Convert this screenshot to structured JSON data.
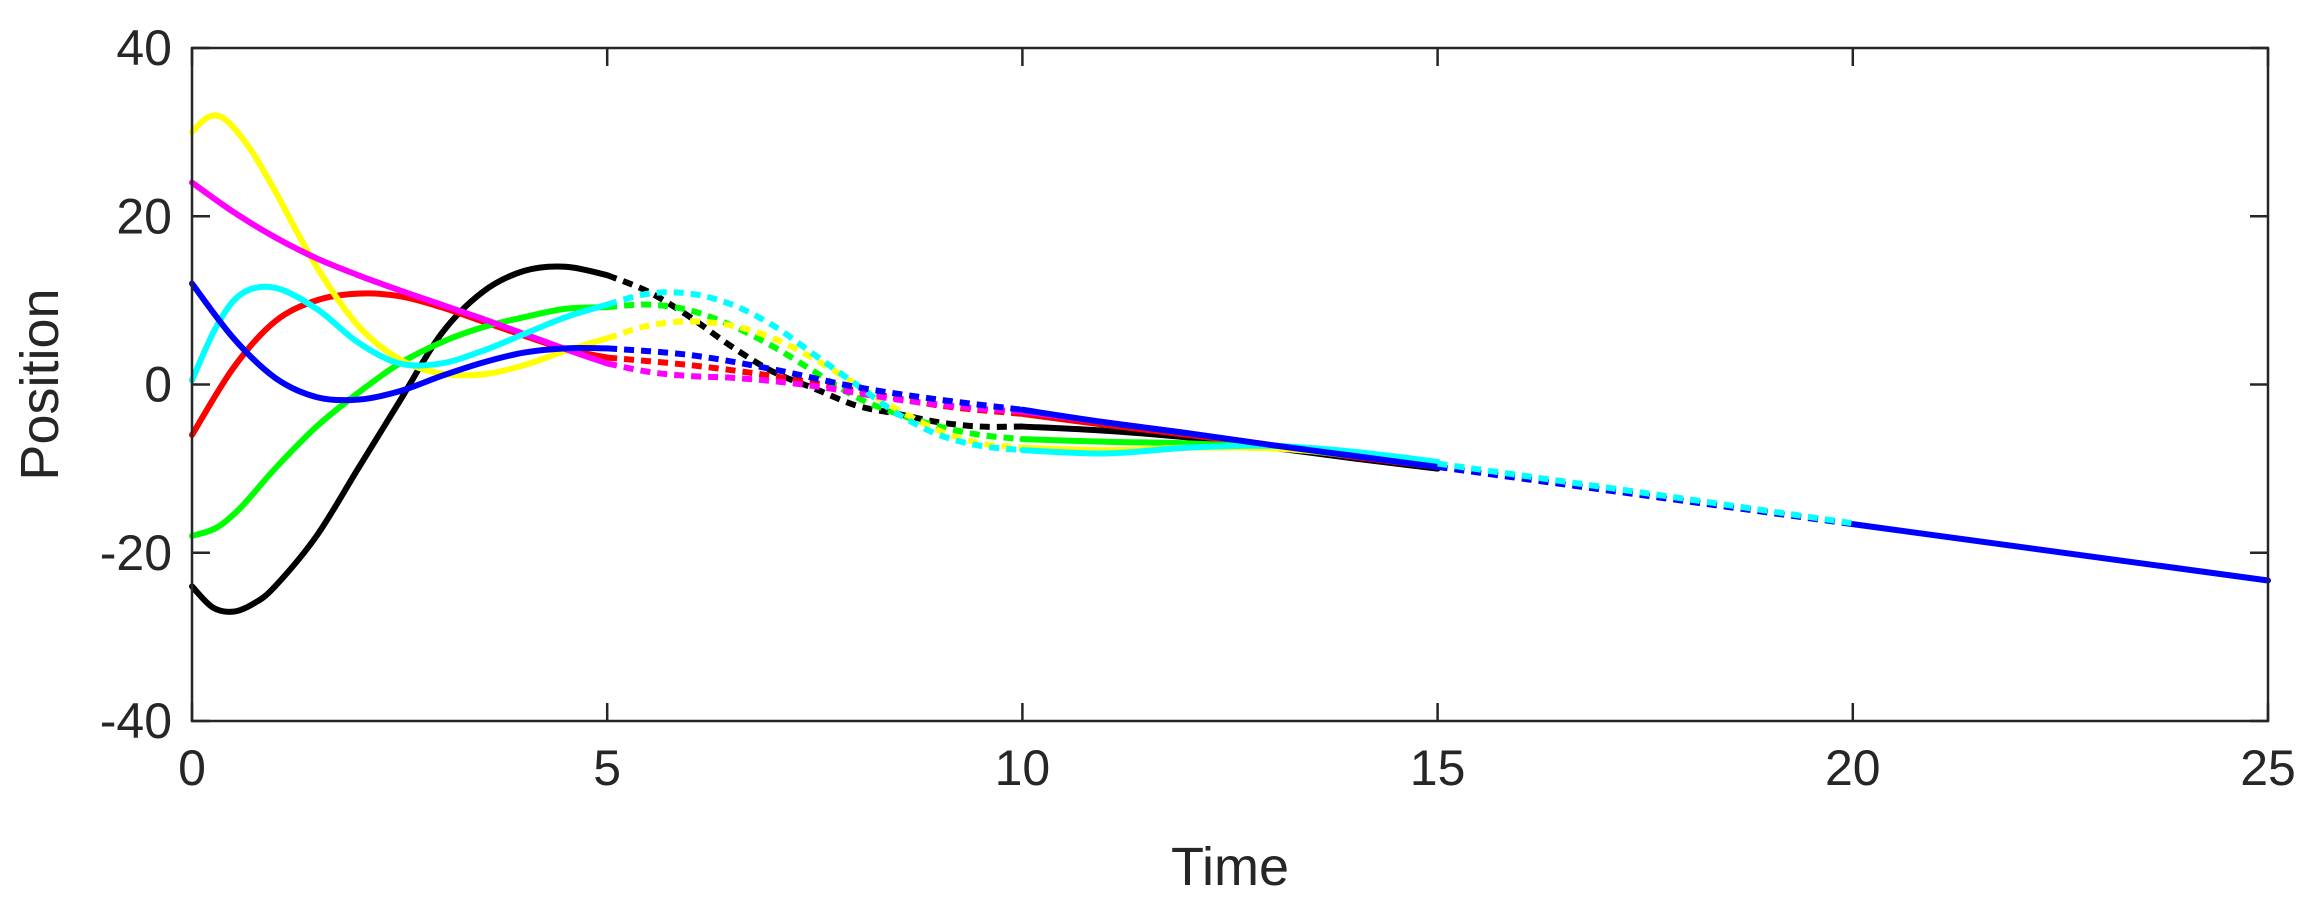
{
  "chart_data": {
    "type": "line",
    "title": "",
    "xlabel": "Time",
    "ylabel": "Position",
    "xlim": [
      0,
      25
    ],
    "ylim": [
      -40,
      40
    ],
    "xticks": [
      0,
      5,
      10,
      15,
      20,
      25
    ],
    "xtick_labels": [
      "0",
      "5",
      "10",
      "15",
      "20",
      "25"
    ],
    "yticks": [
      -40,
      -20,
      0,
      20,
      40
    ],
    "ytick_labels": [
      "-40",
      "-20",
      "0",
      "20",
      "40"
    ],
    "grid": false,
    "legend": "none",
    "series": [
      {
        "color": "#000000",
        "segments": [
          {
            "style": "solid",
            "x": [
              0,
              0.25,
              0.5,
              0.75,
              1,
              1.5,
              2,
              2.5,
              3,
              3.5,
              4,
              4.5,
              5
            ],
            "y": [
              -24,
              -26.5,
              -27,
              -26,
              -24,
              -18,
              -10,
              -2,
              6,
              11,
              13.5,
              14,
              13
            ]
          },
          {
            "style": "dashed",
            "x": [
              5,
              5.5,
              6,
              6.5,
              7,
              7.5,
              8,
              8.5,
              9,
              9.5,
              10
            ],
            "y": [
              13,
              11,
              8,
              4.5,
              1.5,
              -0.5,
              -2.5,
              -3.5,
              -4.5,
              -5,
              -5
            ]
          },
          {
            "style": "solid",
            "x": [
              10,
              11,
              12,
              13,
              14,
              15
            ],
            "y": [
              -5,
              -5.5,
              -6.3,
              -7.5,
              -8.8,
              -10
            ]
          }
        ]
      },
      {
        "color": "#ff0000",
        "segments": [
          {
            "style": "solid",
            "x": [
              0,
              0.5,
              1,
              1.5,
              2,
              2.5,
              3,
              3.5,
              4,
              4.5,
              5
            ],
            "y": [
              -6,
              2,
              7.5,
              10,
              10.8,
              10.5,
              9.2,
              7.5,
              5.8,
              4.2,
              3.2
            ]
          },
          {
            "style": "dashed",
            "x": [
              5,
              6,
              7,
              8,
              9,
              10
            ],
            "y": [
              3.2,
              2.3,
              1,
              -0.7,
              -2.5,
              -3.5
            ]
          },
          {
            "style": "solid",
            "x": [
              10,
              11,
              12,
              13,
              14,
              15
            ],
            "y": [
              -3.5,
              -4.8,
              -6,
              -7.3,
              -8.6,
              -9.8
            ]
          }
        ]
      },
      {
        "color": "#00ff00",
        "segments": [
          {
            "style": "solid",
            "x": [
              0,
              0.3,
              0.6,
              1,
              1.5,
              2,
              2.5,
              3,
              3.5,
              4,
              4.5,
              5
            ],
            "y": [
              -18,
              -17,
              -14.5,
              -10,
              -5,
              -1,
              2.5,
              5,
              6.8,
              8,
              9,
              9.2
            ]
          },
          {
            "style": "dashed",
            "x": [
              5,
              5.5,
              6,
              6.5,
              7,
              7.5,
              8,
              8.5,
              9,
              9.5,
              10
            ],
            "y": [
              9.2,
              9.5,
              8.8,
              7,
              4.5,
              1.5,
              -1.5,
              -3.5,
              -5,
              -6,
              -6.5
            ]
          },
          {
            "style": "solid",
            "x": [
              10,
              11,
              12,
              13,
              14,
              15
            ],
            "y": [
              -6.5,
              -6.8,
              -7,
              -7.5,
              -8.5,
              -9.7
            ]
          }
        ]
      },
      {
        "color": "#ffff00",
        "segments": [
          {
            "style": "solid",
            "x": [
              0,
              0.2,
              0.4,
              0.7,
              1,
              1.5,
              2,
              2.5,
              3,
              3.5,
              4,
              4.5,
              5
            ],
            "y": [
              30,
              31.8,
              31.5,
              28,
              23,
              14,
              7,
              3,
              1.3,
              1.2,
              2.3,
              4,
              5.5
            ]
          },
          {
            "style": "dashed",
            "x": [
              5,
              5.5,
              6,
              6.5,
              7,
              7.5,
              8,
              8.5,
              9,
              9.5,
              10
            ],
            "y": [
              5.5,
              7,
              7.5,
              7,
              5.5,
              3,
              0,
              -3,
              -5.5,
              -7,
              -7.5
            ]
          },
          {
            "style": "solid",
            "x": [
              10,
              11,
              12,
              13,
              14,
              15
            ],
            "y": [
              -7.5,
              -7.8,
              -7.5,
              -7.6,
              -8.4,
              -9.6
            ]
          }
        ]
      },
      {
        "color": "#ff00ff",
        "segments": [
          {
            "style": "solid",
            "x": [
              0,
              0.5,
              1,
              1.5,
              2,
              2.5,
              3,
              3.5,
              4,
              4.5,
              5
            ],
            "y": [
              24,
              20.5,
              17.5,
              15,
              13,
              11.2,
              9.5,
              7.8,
              6,
              4.2,
              2.5
            ]
          },
          {
            "style": "dashed",
            "x": [
              5,
              5.5,
              6,
              6.5,
              7,
              7.5,
              8,
              8.5,
              9,
              9.5,
              10
            ],
            "y": [
              2.5,
              1.5,
              1,
              0.8,
              0.4,
              -0.2,
              -1,
              -1.8,
              -2.4,
              -2.9,
              -3.2
            ]
          },
          {
            "style": "solid",
            "x": [
              10,
              11,
              12,
              13,
              14,
              15
            ],
            "y": [
              -3.2,
              -4.5,
              -5.8,
              -7.2,
              -8.5,
              -9.8
            ]
          }
        ]
      },
      {
        "color": "#00ffff",
        "segments": [
          {
            "style": "solid",
            "x": [
              0,
              0.3,
              0.6,
              1,
              1.5,
              2,
              2.5,
              3,
              3.5,
              4,
              4.5,
              5
            ],
            "y": [
              0.5,
              7,
              10.8,
              11.5,
              9,
              5,
              2.5,
              2.5,
              4,
              6,
              8,
              9.5
            ]
          },
          {
            "style": "dashed",
            "x": [
              5,
              5.5,
              6,
              6.5,
              7,
              7.5,
              8,
              8.5,
              9,
              9.5,
              10
            ],
            "y": [
              9.5,
              10.8,
              10.8,
              9.5,
              7,
              3.5,
              0,
              -3.5,
              -6,
              -7.3,
              -7.8
            ]
          },
          {
            "style": "solid",
            "x": [
              10,
              11,
              12,
              13,
              14,
              15
            ],
            "y": [
              -7.8,
              -8.2,
              -7.5,
              -7.3,
              -8,
              -9.2
            ]
          }
        ]
      },
      {
        "color": "#0000ff",
        "segments": [
          {
            "style": "solid",
            "x": [
              0,
              0.5,
              1,
              1.5,
              2,
              2.5,
              3,
              3.5,
              4,
              4.5,
              5
            ],
            "y": [
              12,
              5.5,
              0.8,
              -1.5,
              -1.8,
              -0.8,
              1,
              2.6,
              3.8,
              4.3,
              4.3
            ]
          },
          {
            "style": "dashed",
            "x": [
              5,
              6,
              7,
              8,
              9,
              10
            ],
            "y": [
              4.3,
              3.5,
              1.8,
              -0.3,
              -1.8,
              -3
            ]
          },
          {
            "style": "solid",
            "x": [
              10,
              11,
              12,
              13,
              14,
              15
            ],
            "y": [
              -3,
              -4.5,
              -5.8,
              -7.2,
              -8.5,
              -9.8
            ]
          }
        ]
      },
      {
        "color": "#0000ff",
        "segments": [
          {
            "style": "dashed",
            "x": [
              15,
              20
            ],
            "y": [
              -9.8,
              -16.6
            ]
          },
          {
            "style": "solid",
            "x": [
              20,
              25
            ],
            "y": [
              -16.6,
              -23.3
            ]
          }
        ]
      },
      {
        "color": "#00ffff",
        "segments": [
          {
            "style": "dashed",
            "x": [
              15,
              17.5,
              20
            ],
            "y": [
              -9.4,
              -12.9,
              -16.5
            ]
          }
        ]
      }
    ]
  }
}
